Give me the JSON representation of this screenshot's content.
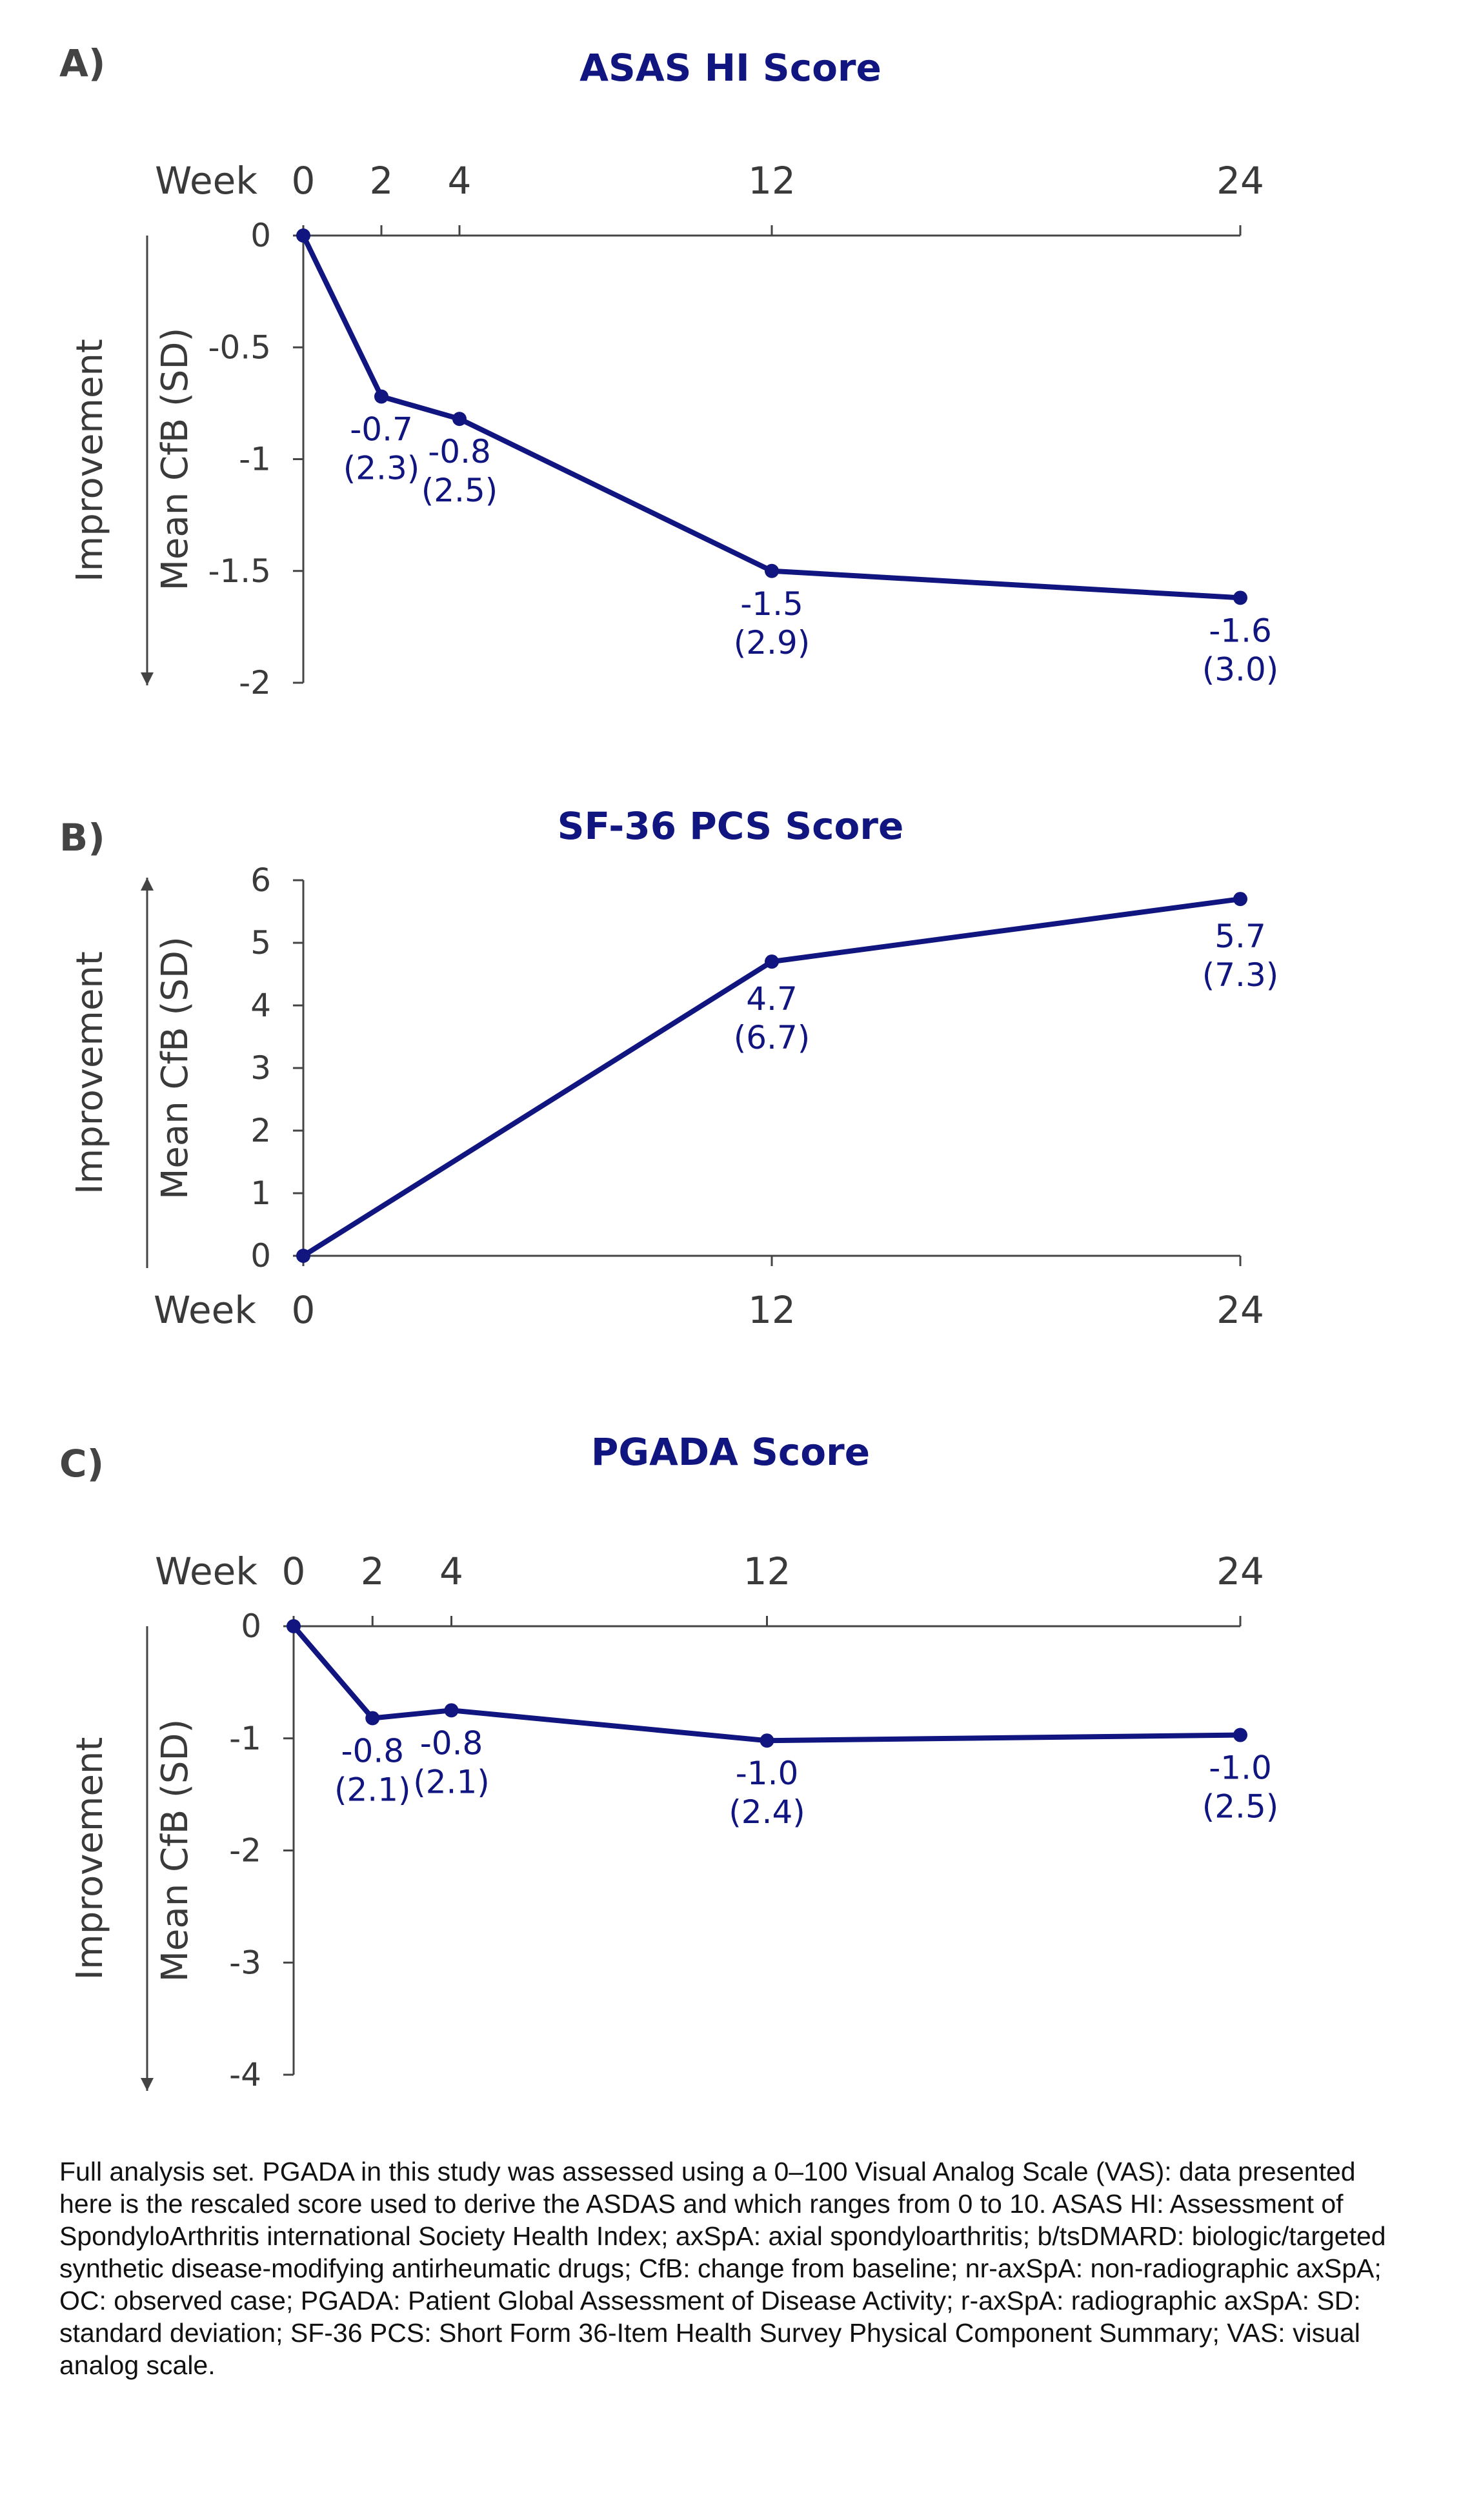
{
  "colors": {
    "series": "#101580",
    "title": "#101580",
    "axis": "#444444",
    "text": "#3a3a3a"
  },
  "x_tick_word": "Week",
  "side_label": "Improvement",
  "chart_data": [
    {
      "type": "line",
      "panel_label": "A)",
      "title": "ASAS HI Score",
      "ylabel": "Mean CfB (SD)",
      "x": [
        0,
        2,
        4,
        12,
        24
      ],
      "x_ticks": [
        0,
        2,
        4,
        12,
        24
      ],
      "y": [
        0,
        -0.72,
        -0.82,
        -1.5,
        -1.62
      ],
      "ylim": [
        -2,
        0
      ],
      "y_ticks": [
        "0",
        "-0.5",
        "-1",
        "-1.5",
        "-2"
      ],
      "labels": [
        null,
        [
          "-0.7",
          "(2.3)"
        ],
        [
          "-0.8",
          "(2.5)"
        ],
        [
          "-1.5",
          "(2.9)"
        ],
        [
          "-1.6",
          "(3.0)"
        ]
      ],
      "x_axis_position": "top",
      "improvement_direction": "down"
    },
    {
      "type": "line",
      "panel_label": "B)",
      "title": "SF-36 PCS Score",
      "ylabel": "Mean CfB (SD)",
      "x": [
        0,
        12,
        24
      ],
      "x_ticks": [
        0,
        12,
        24
      ],
      "y": [
        0,
        4.7,
        5.7
      ],
      "ylim": [
        0,
        6
      ],
      "y_ticks": [
        "0",
        "1",
        "2",
        "3",
        "4",
        "5",
        "6"
      ],
      "labels": [
        null,
        [
          "4.7",
          "(6.7)"
        ],
        [
          "5.7",
          "(7.3)"
        ]
      ],
      "x_axis_position": "bottom",
      "improvement_direction": "up"
    },
    {
      "type": "line",
      "panel_label": "C)",
      "title": "PGADA Score",
      "ylabel": "Mean CfB (SD)",
      "x": [
        0,
        2,
        4,
        12,
        24
      ],
      "x_ticks": [
        0,
        2,
        4,
        12,
        24
      ],
      "y": [
        0,
        -0.82,
        -0.75,
        -1.02,
        -0.97
      ],
      "ylim": [
        -4,
        0
      ],
      "y_ticks": [
        "0",
        "-1",
        "-2",
        "-3",
        "-4"
      ],
      "labels": [
        null,
        [
          "-0.8",
          "(2.1)"
        ],
        [
          "-0.8",
          "(2.1)"
        ],
        [
          "-1.0",
          "(2.4)"
        ],
        [
          "-1.0",
          "(2.5)"
        ]
      ],
      "x_axis_position": "top",
      "improvement_direction": "down"
    }
  ],
  "footnote": "Full analysis set. PGADA in this study was assessed using a 0–100 Visual Analog Scale (VAS): data presented here is the rescaled score used to derive the ASDAS and which ranges from 0 to 10. ASAS HI: Assessment of SpondyloArthritis international Society Health Index; axSpA: axial spondyloarthritis; b/tsDMARD: biologic/targeted synthetic disease-modifying antirheumatic drugs; CfB: change from baseline; nr-axSpA: non-radiographic axSpA; OC: observed case; PGADA: Patient Global Assessment of Disease Activity; r-axSpA: radiographic axSpA: SD: standard deviation; SF-36 PCS: Short Form 36-Item Health Survey Physical Component Summary; VAS: visual analog scale."
}
